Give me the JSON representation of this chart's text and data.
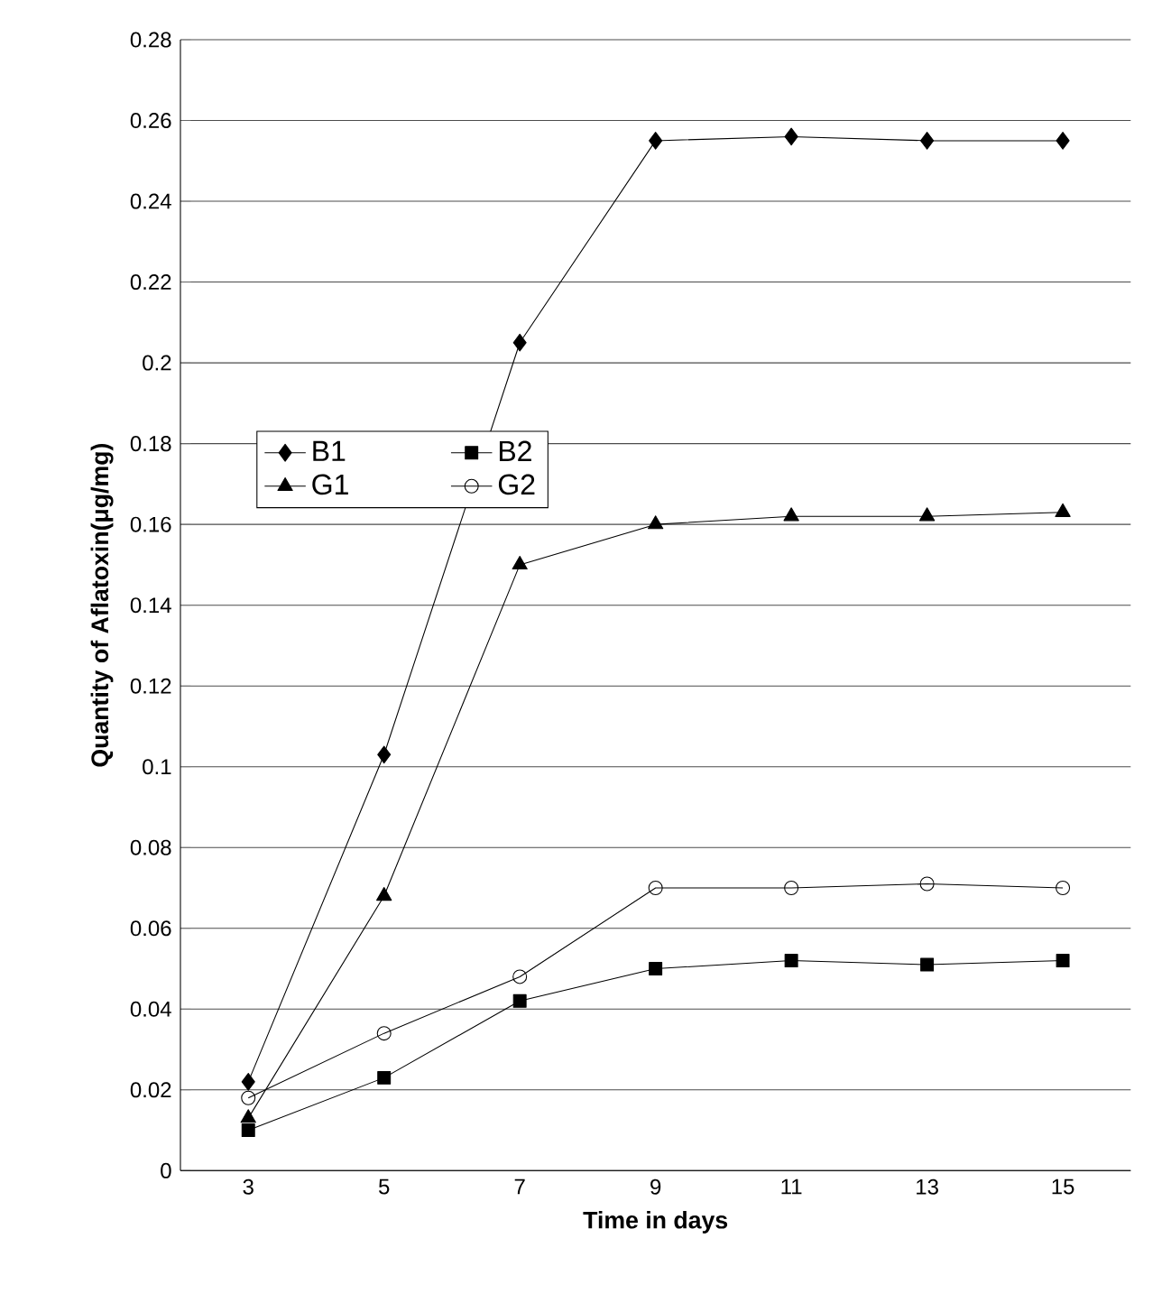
{
  "chart_data": {
    "type": "line",
    "xlabel": "Time in days",
    "ylabel": "Quantity of Aflatoxin(μg/mg)",
    "categories": [
      "3",
      "5",
      "7",
      "9",
      "11",
      "13",
      "15"
    ],
    "series": [
      {
        "name": "B1",
        "color": "#000000",
        "marker": "diamond",
        "values": [
          0.022,
          0.103,
          0.205,
          0.255,
          0.256,
          0.255,
          0.255
        ]
      },
      {
        "name": "B2",
        "color": "#000000",
        "marker": "square",
        "values": [
          0.01,
          0.023,
          0.042,
          0.05,
          0.052,
          0.051,
          0.052
        ]
      },
      {
        "name": "G1",
        "color": "#000000",
        "marker": "triangle",
        "values": [
          0.013,
          0.068,
          0.15,
          0.16,
          0.162,
          0.162,
          0.163
        ]
      },
      {
        "name": "G2",
        "color": "#000000",
        "marker": "circle",
        "values": [
          0.018,
          0.034,
          0.048,
          0.07,
          0.07,
          0.071,
          0.07
        ]
      }
    ],
    "ylim": [
      0,
      0.28
    ],
    "yticks": [
      0,
      0.02,
      0.04,
      0.06,
      0.08,
      0.1,
      0.12,
      0.14,
      0.16,
      0.18,
      0.2,
      0.22,
      0.24,
      0.26,
      0.28
    ],
    "grid": "y",
    "legend": "left",
    "line_style": "solid"
  }
}
